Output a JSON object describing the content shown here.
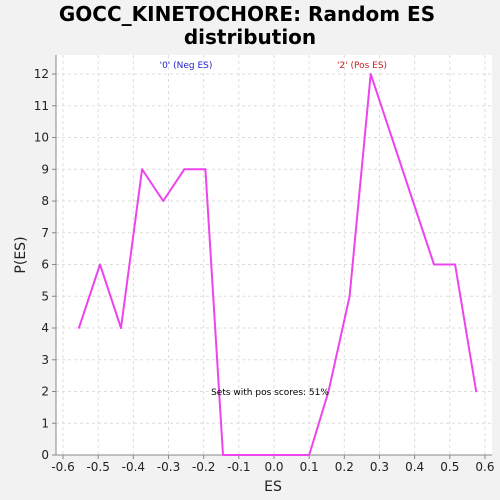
{
  "chart_data": {
    "type": "line",
    "title_lines": [
      "GOCC_KINETOCHORE: Random ES",
      "distribution"
    ],
    "xlabel": "ES",
    "ylabel": "P(ES)",
    "xlim": [
      -0.62,
      0.62
    ],
    "ylim": [
      0,
      12.6
    ],
    "xticks": [
      "-0.6",
      "-0.5",
      "-0.4",
      "-0.3",
      "-0.2",
      "-0.1",
      "0.0",
      "0.1",
      "0.2",
      "0.3",
      "0.4",
      "0.5",
      "0.6"
    ],
    "yticks": [
      "0",
      "1",
      "2",
      "3",
      "4",
      "5",
      "6",
      "7",
      "8",
      "9",
      "10",
      "11",
      "12"
    ],
    "grid": true,
    "series": [
      {
        "color": "#ee44ee",
        "x": [
          -0.555,
          -0.495,
          -0.435,
          -0.375,
          -0.315,
          -0.255,
          -0.195,
          -0.145,
          -0.085,
          -0.025,
          0.035,
          0.1,
          0.155,
          0.215,
          0.275,
          0.335,
          0.395,
          0.455,
          0.515,
          0.575
        ],
        "y": [
          4,
          6,
          4,
          9,
          8,
          9,
          9,
          0,
          0,
          0,
          0,
          0,
          2,
          5,
          12,
          10,
          8,
          6,
          6,
          2
        ]
      }
    ],
    "annotations": {
      "neg_label": "'0' (Neg ES)",
      "neg_color": "#2222cc",
      "pos_label": "'2' (Pos ES)",
      "pos_color": "#cc2222",
      "pos_scores_text": "Sets with pos scores: 51%"
    }
  }
}
